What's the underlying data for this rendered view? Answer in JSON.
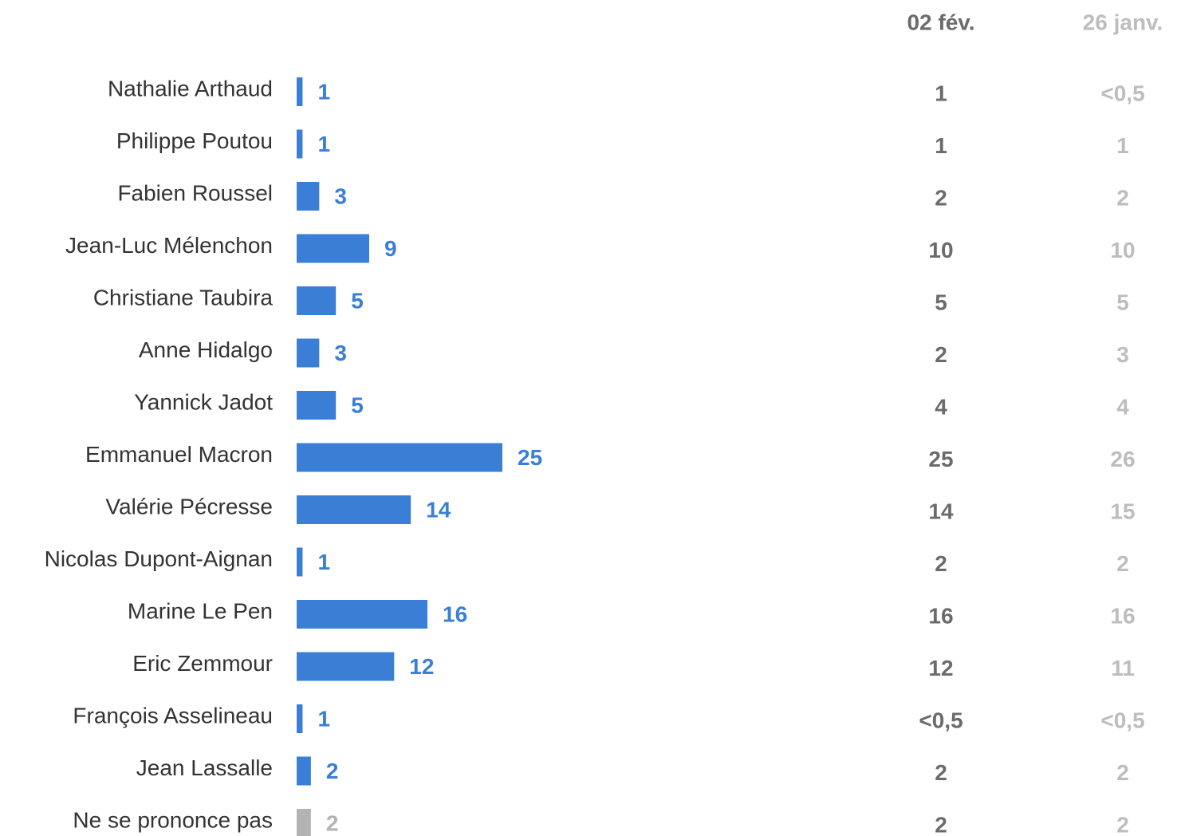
{
  "chart_data": {
    "type": "hbar",
    "categories": [
      "Nathalie Arthaud",
      "Philippe Poutou",
      "Fabien Roussel",
      "Jean-Luc Mélenchon",
      "Christiane Taubira",
      "Anne Hidalgo",
      "Yannick Jadot",
      "Emmanuel Macron",
      "Valérie Pécresse",
      "Nicolas Dupont-Aignan",
      "Marine Le Pen",
      "Eric Zemmour",
      "François Asselineau",
      "Jean Lassalle",
      "Ne se prononce pas"
    ],
    "values": [
      1,
      1,
      3,
      9,
      5,
      3,
      5,
      25,
      14,
      1,
      16,
      12,
      1,
      2,
      2
    ],
    "colors": [
      "#3a7fd5",
      "#3a7fd5",
      "#3a7fd5",
      "#3a7fd5",
      "#3a7fd5",
      "#3a7fd5",
      "#3a7fd5",
      "#3a7fd5",
      "#3a7fd5",
      "#3a7fd5",
      "#3a7fd5",
      "#3a7fd5",
      "#3a7fd5",
      "#3a7fd5",
      "#b3b3b3"
    ],
    "columns": [
      {
        "name": "02 fév.",
        "color": "#6b6b6b",
        "values": [
          1,
          1,
          2,
          10,
          5,
          2,
          4,
          25,
          14,
          2,
          16,
          12,
          "<0,5",
          2,
          2
        ]
      },
      {
        "name": "26 janv.",
        "color": "#bdbdbd",
        "values": [
          "<0,5",
          1,
          2,
          10,
          5,
          3,
          4,
          26,
          15,
          2,
          16,
          11,
          "<0,5",
          2,
          2
        ]
      }
    ]
  }
}
